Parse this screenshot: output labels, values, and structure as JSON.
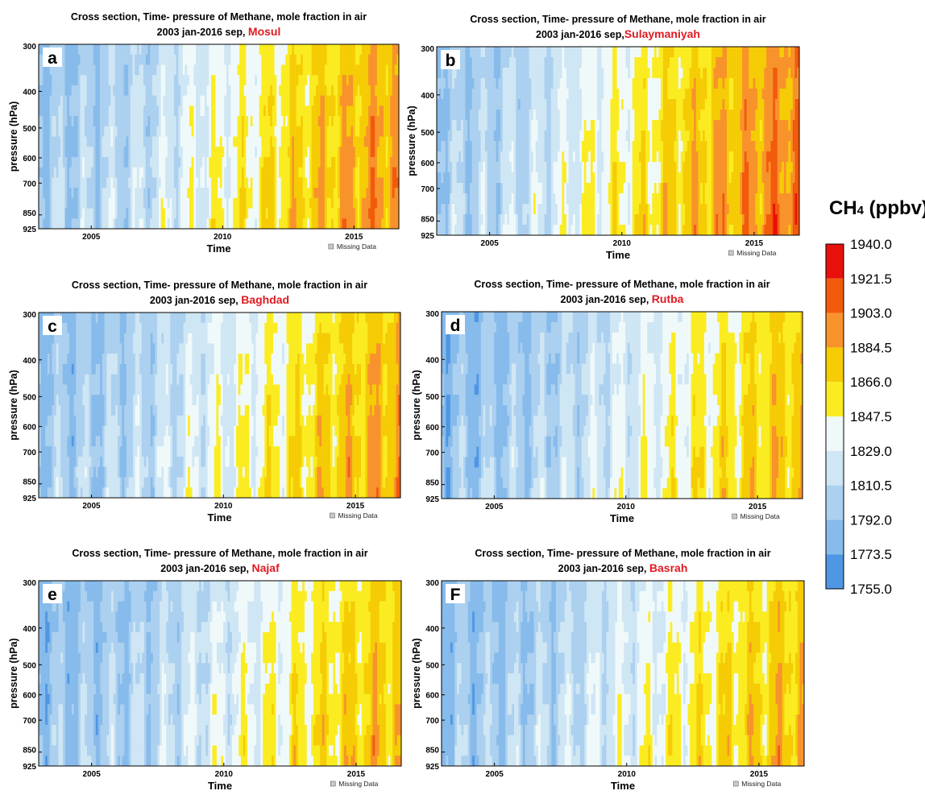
{
  "colorbar": {
    "title_main": "CH",
    "title_sub": "4",
    "title_rest": " (ppbv)",
    "levels": [
      "1940.0",
      "1921.5",
      "1903.0",
      "1884.5",
      "1866.0",
      "1847.5",
      "1829.0",
      "1810.5",
      "1792.0",
      "1773.5",
      "1755.0"
    ],
    "colors_top_to_bottom": [
      "#e8100a",
      "#f25a0c",
      "#f8932c",
      "#f5cc05",
      "#fbec22",
      "#f0f9fa",
      "#cfe6f4",
      "#acd0ef",
      "#86bbeb",
      "#4f97e4"
    ]
  },
  "axes_common": {
    "ylabel": "pressure (hPa)",
    "xlabel": "Time",
    "missing_data_label": "Missing Data",
    "yticks": [
      "300",
      "400",
      "500",
      "600",
      "700",
      "850",
      "925"
    ],
    "xticks": [
      "2005",
      "2010",
      "2015"
    ]
  },
  "chart_data": [
    {
      "type": "heatmap",
      "panel_label": "a",
      "title": "Cross section, Time- pressure of Methane, mole fraction in air",
      "subtitle_prefix": "2003 jan-2016 sep, ",
      "location": "Mosul",
      "x_range": [
        "2003-01",
        "2016-09"
      ],
      "y_range_hPa": [
        925,
        300
      ],
      "xlabel": "Time",
      "ylabel": "pressure (hPa)",
      "value_range_ppbv": [
        1755.0,
        1940.0
      ],
      "approx_mean_ppbv_by_year": {
        "2003": 1798,
        "2004": 1800,
        "2005": 1803,
        "2006": 1808,
        "2007": 1812,
        "2008": 1822,
        "2009": 1834,
        "2010": 1840,
        "2011": 1848,
        "2012": 1858,
        "2013": 1866,
        "2014": 1874,
        "2015": 1880,
        "2016": 1887
      }
    },
    {
      "type": "heatmap",
      "panel_label": "b",
      "title": "Cross section, Time- pressure of Methane, mole fraction in air",
      "subtitle_prefix": "2003 jan-2016 sep,",
      "location": "Sulaymaniyah",
      "x_range": [
        "2003-01",
        "2016-09"
      ],
      "y_range_hPa": [
        925,
        300
      ],
      "xlabel": "Time",
      "ylabel": "pressure (hPa)",
      "value_range_ppbv": [
        1755.0,
        1940.0
      ],
      "approx_mean_ppbv_by_year": {
        "2003": 1800,
        "2004": 1802,
        "2005": 1806,
        "2006": 1812,
        "2007": 1818,
        "2008": 1830,
        "2009": 1840,
        "2010": 1846,
        "2011": 1855,
        "2012": 1866,
        "2013": 1874,
        "2014": 1882,
        "2015": 1888,
        "2016": 1896
      }
    },
    {
      "type": "heatmap",
      "panel_label": "c",
      "title": "Cross section, Time- pressure of Methane, mole fraction in air",
      "subtitle_prefix": "2003 jan-2016 sep, ",
      "location": "Baghdad",
      "x_range": [
        "2003-01",
        "2016-09"
      ],
      "y_range_hPa": [
        925,
        300
      ],
      "xlabel": "Time",
      "ylabel": "pressure (hPa)",
      "value_range_ppbv": [
        1755.0,
        1940.0
      ],
      "approx_mean_ppbv_by_year": {
        "2003": 1795,
        "2004": 1797,
        "2005": 1800,
        "2006": 1804,
        "2007": 1808,
        "2008": 1816,
        "2009": 1826,
        "2010": 1832,
        "2011": 1840,
        "2012": 1850,
        "2013": 1858,
        "2014": 1866,
        "2015": 1872,
        "2016": 1880
      }
    },
    {
      "type": "heatmap",
      "panel_label": "d",
      "title": "Cross section, Time- pressure of Methane, mole fraction in air",
      "subtitle_prefix": "2003 jan-2016 sep,  ",
      "location": "Rutba",
      "x_range": [
        "2003-01",
        "2016-09"
      ],
      "y_range_hPa": [
        925,
        300
      ],
      "xlabel": "Time",
      "ylabel": "pressure (hPa)",
      "value_range_ppbv": [
        1755.0,
        1940.0
      ],
      "approx_mean_ppbv_by_year": {
        "2003": 1790,
        "2004": 1792,
        "2005": 1795,
        "2006": 1799,
        "2007": 1803,
        "2008": 1810,
        "2009": 1820,
        "2010": 1826,
        "2011": 1834,
        "2012": 1843,
        "2013": 1851,
        "2014": 1858,
        "2015": 1864,
        "2016": 1872
      }
    },
    {
      "type": "heatmap",
      "panel_label": "e",
      "title": "Cross section, Time- pressure of Methane, mole fraction in air",
      "subtitle_prefix": "2003 jan-2016 sep, ",
      "location": "Najaf",
      "x_range": [
        "2003-01",
        "2016-09"
      ],
      "y_range_hPa": [
        925,
        300
      ],
      "xlabel": "Time",
      "ylabel": "pressure (hPa)",
      "value_range_ppbv": [
        1755.0,
        1940.0
      ],
      "approx_mean_ppbv_by_year": {
        "2003": 1791,
        "2004": 1793,
        "2005": 1796,
        "2006": 1800,
        "2007": 1804,
        "2008": 1811,
        "2009": 1821,
        "2010": 1827,
        "2011": 1835,
        "2012": 1844,
        "2013": 1852,
        "2014": 1859,
        "2015": 1865,
        "2016": 1872
      }
    },
    {
      "type": "heatmap",
      "panel_label": "F",
      "title": "Cross section, Time- pressure of Methane, mole fraction in air",
      "subtitle_prefix": "2003 jan-2016 sep, ",
      "location": "Basrah",
      "x_range": [
        "2003-01",
        "2016-09"
      ],
      "y_range_hPa": [
        925,
        300
      ],
      "xlabel": "Time",
      "ylabel": "pressure (hPa)",
      "value_range_ppbv": [
        1755.0,
        1940.0
      ],
      "approx_mean_ppbv_by_year": {
        "2003": 1792,
        "2004": 1794,
        "2005": 1797,
        "2006": 1801,
        "2007": 1805,
        "2008": 1812,
        "2009": 1822,
        "2010": 1828,
        "2011": 1836,
        "2012": 1845,
        "2013": 1853,
        "2014": 1860,
        "2015": 1866,
        "2016": 1873
      }
    }
  ]
}
